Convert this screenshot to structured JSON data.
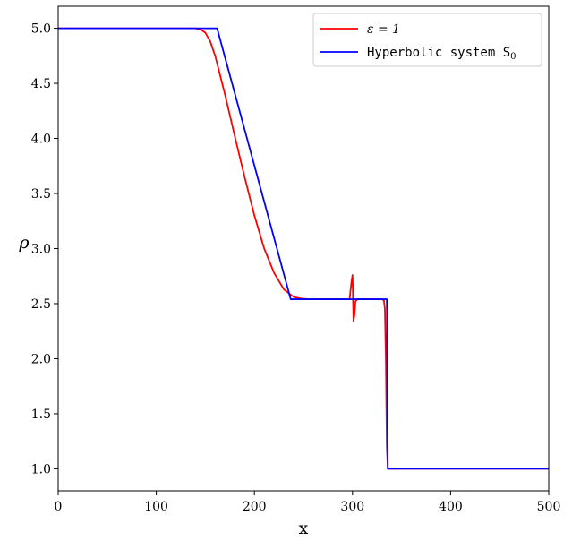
{
  "chart_data": {
    "type": "line",
    "xlabel": "x",
    "ylabel": "ρ",
    "xlim": [
      0,
      500
    ],
    "ylim": [
      0.8,
      5.2
    ],
    "xticks": [
      0,
      100,
      200,
      300,
      400,
      500
    ],
    "xtick_labels": [
      "0",
      "100",
      "200",
      "300",
      "400",
      "500"
    ],
    "yticks": [
      1.0,
      1.5,
      2.0,
      2.5,
      3.0,
      3.5,
      4.0,
      4.5,
      5.0
    ],
    "ytick_labels": [
      "1.0",
      "1.5",
      "2.0",
      "2.5",
      "3.0",
      "3.5",
      "4.0",
      "4.5",
      "5.0"
    ],
    "grid": false,
    "legend": "top-right",
    "series": [
      {
        "name": "ε = 1",
        "color": "#ff0000",
        "x": [
          0,
          140,
          145,
          150,
          155,
          160,
          170,
          180,
          190,
          200,
          210,
          220,
          230,
          240,
          248,
          255,
          265,
          280,
          297,
          299,
          300,
          301,
          302,
          303,
          305,
          320,
          330,
          332,
          333,
          334,
          335,
          336,
          340,
          400,
          500
        ],
        "y": [
          5.0,
          5.0,
          4.99,
          4.96,
          4.88,
          4.75,
          4.4,
          4.02,
          3.65,
          3.3,
          3.0,
          2.78,
          2.63,
          2.56,
          2.545,
          2.54,
          2.54,
          2.54,
          2.54,
          2.7,
          2.76,
          2.34,
          2.4,
          2.52,
          2.54,
          2.54,
          2.54,
          2.53,
          2.45,
          2.0,
          1.2,
          1.0,
          1.0,
          1.0,
          1.0
        ]
      },
      {
        "name": "Hyperbolic system S₀",
        "color": "#0000ff",
        "x": [
          0,
          160,
          162,
          237,
          238,
          334,
          335,
          336,
          340,
          400,
          500
        ],
        "y": [
          5.0,
          5.0,
          5.0,
          2.54,
          2.54,
          2.54,
          2.54,
          1.0,
          1.0,
          1.0,
          1.0
        ]
      }
    ]
  },
  "legend_items": [
    {
      "label_main": "ε = 1",
      "label_sub": ""
    },
    {
      "label_main": "Hyperbolic system S",
      "label_sub": "0"
    }
  ]
}
